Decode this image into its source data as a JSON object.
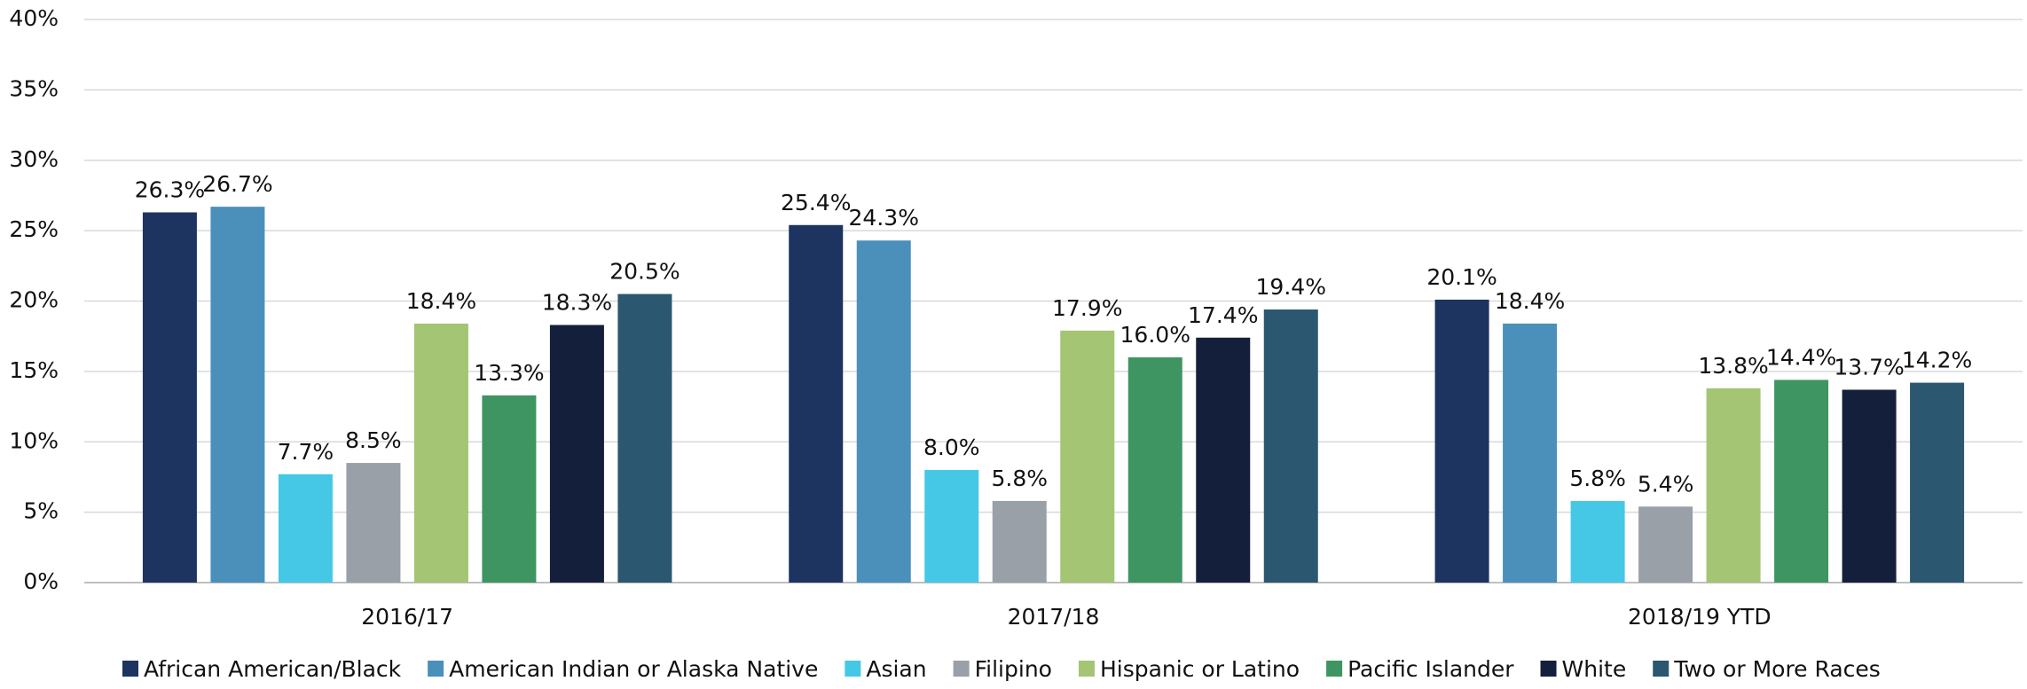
{
  "chart_data": {
    "type": "bar",
    "categories": [
      "2016/17",
      "2017/18",
      "2018/19 YTD"
    ],
    "series": [
      {
        "name": "African American/Black",
        "color": "#1d3461",
        "values": [
          26.3,
          25.4,
          20.1
        ],
        "value_labels": [
          "26.3%",
          "25.4%",
          "20.1%"
        ]
      },
      {
        "name": "American Indian or Alaska Native",
        "color": "#4a90bb",
        "values": [
          26.7,
          24.3,
          18.4
        ],
        "value_labels": [
          "26.7%",
          "24.3%",
          "18.4%"
        ]
      },
      {
        "name": "Asian",
        "color": "#45c8e5",
        "values": [
          7.7,
          8.0,
          5.8
        ],
        "value_labels": [
          "7.7%",
          "8.0%",
          "5.8%"
        ]
      },
      {
        "name": "Filipino",
        "color": "#9aa0a8",
        "values": [
          8.5,
          5.8,
          5.4
        ],
        "value_labels": [
          "8.5%",
          "5.8%",
          "5.4%"
        ]
      },
      {
        "name": "Hispanic or Latino",
        "color": "#a3c574",
        "values": [
          18.4,
          17.9,
          13.8
        ],
        "value_labels": [
          "18.4%",
          "17.9%",
          "13.8%"
        ]
      },
      {
        "name": "Pacific Islander",
        "color": "#3f9561",
        "values": [
          13.3,
          16.0,
          14.4
        ],
        "value_labels": [
          "13.3%",
          "16.0%",
          "14.4%"
        ]
      },
      {
        "name": "White",
        "color": "#14203b",
        "values": [
          18.3,
          17.4,
          13.7
        ],
        "value_labels": [
          "18.3%",
          "17.4%",
          "13.7%"
        ]
      },
      {
        "name": "Two or More Races",
        "color": "#2b5770",
        "values": [
          20.5,
          19.4,
          14.2
        ],
        "value_labels": [
          "20.5%",
          "19.4%",
          "14.2%"
        ]
      }
    ],
    "ylim": [
      0,
      40
    ],
    "yticks": [
      {
        "value": 0,
        "label": "0%"
      },
      {
        "value": 5,
        "label": "5%"
      },
      {
        "value": 10,
        "label": "10%"
      },
      {
        "value": 15,
        "label": "15%"
      },
      {
        "value": 20,
        "label": "20%"
      },
      {
        "value": 25,
        "label": "25%"
      },
      {
        "value": 30,
        "label": "30%"
      },
      {
        "value": 35,
        "label": "35%"
      },
      {
        "value": 40,
        "label": "40%"
      }
    ],
    "grid": true,
    "legend": "bottom"
  }
}
